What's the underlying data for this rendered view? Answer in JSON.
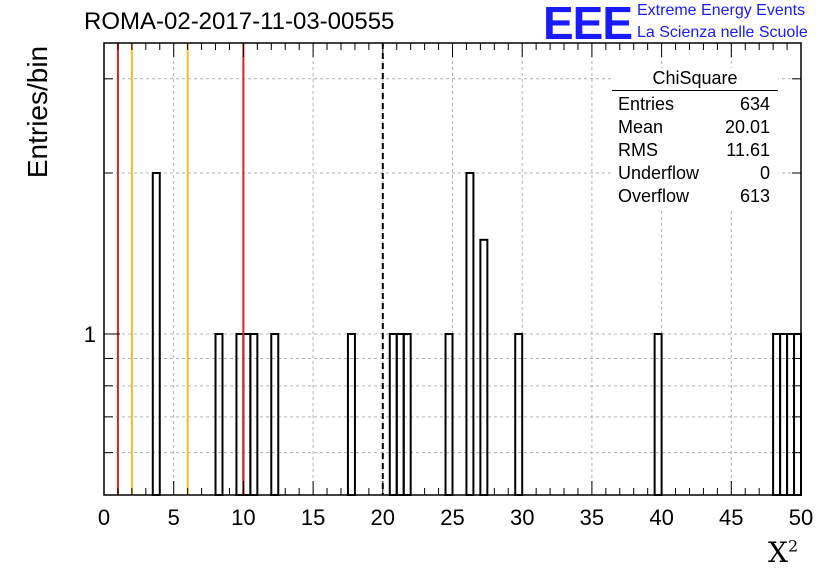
{
  "title": "ROMA-02-2017-11-03-00555",
  "logo": {
    "mark": "EEE",
    "line1": "Extreme Energy Events",
    "line2": "La Scienza nelle Scuole",
    "color": "#1a1aff"
  },
  "stats": {
    "header": "ChiSquare",
    "rows": [
      {
        "label": "Entries",
        "value": "634"
      },
      {
        "label": "Mean",
        "value": "20.01"
      },
      {
        "label": "RMS",
        "value": "11.61"
      },
      {
        "label": "Underflow",
        "value": "0"
      },
      {
        "label": "Overflow",
        "value": "613"
      }
    ]
  },
  "chart_data": {
    "type": "bar",
    "title": "ROMA-02-2017-11-03-00555",
    "xlabel": "X",
    "xlabel_sup": "2",
    "ylabel": "Entries/bin",
    "xlim": [
      0,
      50
    ],
    "ylim": [
      0.5,
      3.5
    ],
    "yscale": "log",
    "bin_width": 0.5,
    "xticks": [
      "0",
      "5",
      "10",
      "15",
      "20",
      "25",
      "30",
      "35",
      "40",
      "45",
      "50"
    ],
    "yticks": [
      "1"
    ],
    "grid": true,
    "bins": [
      {
        "x": 3.5,
        "count": 2
      },
      {
        "x": 8.0,
        "count": 1
      },
      {
        "x": 9.5,
        "count": 1
      },
      {
        "x": 10.0,
        "count": 1
      },
      {
        "x": 10.5,
        "count": 1
      },
      {
        "x": 12.0,
        "count": 1
      },
      {
        "x": 17.5,
        "count": 1
      },
      {
        "x": 20.5,
        "count": 1
      },
      {
        "x": 21.0,
        "count": 1
      },
      {
        "x": 21.5,
        "count": 1
      },
      {
        "x": 24.5,
        "count": 1
      },
      {
        "x": 26.0,
        "count": 2
      },
      {
        "x": 27.0,
        "count": 1.5
      },
      {
        "x": 29.5,
        "count": 1
      },
      {
        "x": 39.5,
        "count": 1
      },
      {
        "x": 48.0,
        "count": 1
      },
      {
        "x": 48.5,
        "count": 1
      },
      {
        "x": 49.0,
        "count": 1
      },
      {
        "x": 49.5,
        "count": 1
      }
    ],
    "vlines": [
      {
        "x": 1,
        "color": "#dd2222",
        "style": "solid"
      },
      {
        "x": 2,
        "color": "#f0c020",
        "style": "solid"
      },
      {
        "x": 6,
        "color": "#f0c020",
        "style": "solid"
      },
      {
        "x": 10,
        "color": "#dd2222",
        "style": "solid"
      },
      {
        "x": 20,
        "color": "#000000",
        "style": "dashed"
      }
    ]
  }
}
